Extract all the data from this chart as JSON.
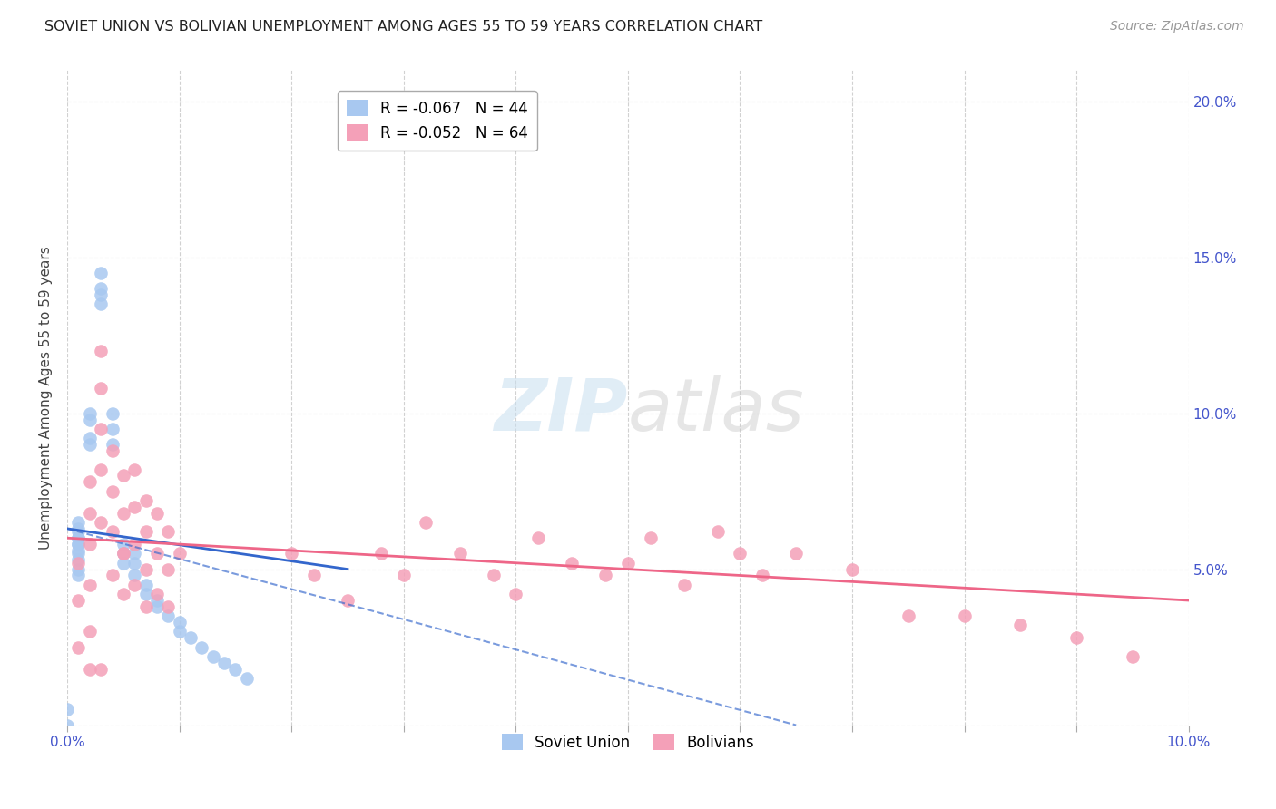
{
  "title": "SOVIET UNION VS BOLIVIAN UNEMPLOYMENT AMONG AGES 55 TO 59 YEARS CORRELATION CHART",
  "source": "Source: ZipAtlas.com",
  "ylabel": "Unemployment Among Ages 55 to 59 years",
  "xlim": [
    0.0,
    0.1
  ],
  "ylim": [
    0.0,
    0.21
  ],
  "xticks": [
    0.0,
    0.01,
    0.02,
    0.03,
    0.04,
    0.05,
    0.06,
    0.07,
    0.08,
    0.09,
    0.1
  ],
  "yticks": [
    0.0,
    0.05,
    0.1,
    0.15,
    0.2
  ],
  "xtick_labels": [
    "0.0%",
    "",
    "",
    "",
    "",
    "",
    "",
    "",
    "",
    "",
    "10.0%"
  ],
  "ytick_labels_left": [
    "",
    "",
    "",
    "",
    ""
  ],
  "ytick_labels_right": [
    "",
    "5.0%",
    "10.0%",
    "15.0%",
    "20.0%"
  ],
  "legend_entries": [
    {
      "label": "R = -0.067   N = 44",
      "color": "#a8c8f0"
    },
    {
      "label": "R = -0.052   N = 64",
      "color": "#f4a0b8"
    }
  ],
  "soviet_color": "#a8c8f0",
  "bolivian_color": "#f4a0b8",
  "soviet_line_color": "#3366cc",
  "bolivian_line_color": "#ee6688",
  "watermark_text": "ZIPatlas",
  "background_color": "#ffffff",
  "soviet_x": [
    0.0,
    0.0,
    0.001,
    0.001,
    0.001,
    0.001,
    0.001,
    0.001,
    0.001,
    0.001,
    0.001,
    0.001,
    0.001,
    0.001,
    0.002,
    0.002,
    0.002,
    0.002,
    0.003,
    0.003,
    0.003,
    0.003,
    0.004,
    0.004,
    0.004,
    0.005,
    0.005,
    0.005,
    0.006,
    0.006,
    0.006,
    0.007,
    0.007,
    0.008,
    0.008,
    0.009,
    0.01,
    0.01,
    0.011,
    0.012,
    0.013,
    0.014,
    0.015,
    0.016
  ],
  "soviet_y": [
    0.0,
    0.005,
    0.055,
    0.058,
    0.062,
    0.06,
    0.065,
    0.063,
    0.06,
    0.058,
    0.056,
    0.053,
    0.05,
    0.048,
    0.09,
    0.092,
    0.1,
    0.098,
    0.135,
    0.138,
    0.14,
    0.145,
    0.09,
    0.095,
    0.1,
    0.058,
    0.055,
    0.052,
    0.055,
    0.052,
    0.048,
    0.045,
    0.042,
    0.04,
    0.038,
    0.035,
    0.033,
    0.03,
    0.028,
    0.025,
    0.022,
    0.02,
    0.018,
    0.015
  ],
  "bolivian_x": [
    0.001,
    0.001,
    0.001,
    0.002,
    0.002,
    0.002,
    0.002,
    0.002,
    0.003,
    0.003,
    0.003,
    0.003,
    0.003,
    0.004,
    0.004,
    0.004,
    0.004,
    0.005,
    0.005,
    0.005,
    0.005,
    0.006,
    0.006,
    0.006,
    0.006,
    0.007,
    0.007,
    0.007,
    0.007,
    0.008,
    0.008,
    0.008,
    0.009,
    0.009,
    0.009,
    0.01,
    0.02,
    0.022,
    0.025,
    0.028,
    0.03,
    0.032,
    0.035,
    0.038,
    0.04,
    0.042,
    0.045,
    0.048,
    0.05,
    0.052,
    0.055,
    0.058,
    0.06,
    0.062,
    0.065,
    0.07,
    0.075,
    0.08,
    0.085,
    0.09,
    0.002,
    0.003,
    0.005,
    0.095
  ],
  "bolivian_y": [
    0.052,
    0.04,
    0.025,
    0.078,
    0.068,
    0.058,
    0.045,
    0.03,
    0.12,
    0.108,
    0.095,
    0.082,
    0.065,
    0.088,
    0.075,
    0.062,
    0.048,
    0.08,
    0.068,
    0.055,
    0.042,
    0.082,
    0.07,
    0.058,
    0.045,
    0.072,
    0.062,
    0.05,
    0.038,
    0.068,
    0.055,
    0.042,
    0.062,
    0.05,
    0.038,
    0.055,
    0.055,
    0.048,
    0.04,
    0.055,
    0.048,
    0.065,
    0.055,
    0.048,
    0.042,
    0.06,
    0.052,
    0.048,
    0.052,
    0.06,
    0.045,
    0.062,
    0.055,
    0.048,
    0.055,
    0.05,
    0.035,
    0.035,
    0.032,
    0.028,
    0.018,
    0.018,
    0.055,
    0.022
  ]
}
